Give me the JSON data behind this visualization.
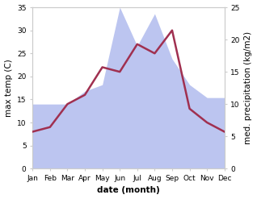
{
  "months": [
    "Jan",
    "Feb",
    "Mar",
    "Apr",
    "May",
    "Jun",
    "Jul",
    "Aug",
    "Sep",
    "Oct",
    "Nov",
    "Dec"
  ],
  "temperature": [
    8.0,
    9.0,
    14.0,
    16.0,
    22.0,
    21.0,
    27.0,
    25.0,
    30.0,
    13.0,
    10.0,
    8.0
  ],
  "precipitation": [
    10.0,
    10.0,
    10.0,
    12.0,
    13.0,
    25.0,
    19.0,
    24.0,
    17.0,
    13.0,
    11.0,
    11.0
  ],
  "temp_color": "#a03050",
  "precip_fill_color": "#bcc5f0",
  "temp_ylim": [
    0,
    35
  ],
  "precip_ylim": [
    0,
    25
  ],
  "temp_yticks": [
    0,
    5,
    10,
    15,
    20,
    25,
    30,
    35
  ],
  "precip_yticks": [
    0,
    5,
    10,
    15,
    20,
    25
  ],
  "xlabel": "date (month)",
  "ylabel_left": "max temp (C)",
  "ylabel_right": "med. precipitation (kg/m2)",
  "bg_color": "#ffffff",
  "label_fontsize": 7.5,
  "tick_fontsize": 6.5
}
